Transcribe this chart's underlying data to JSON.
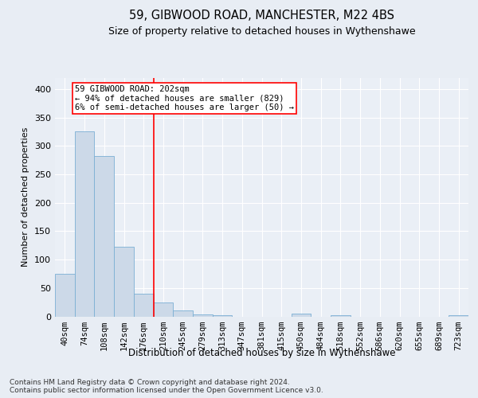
{
  "title1": "59, GIBWOOD ROAD, MANCHESTER, M22 4BS",
  "title2": "Size of property relative to detached houses in Wythenshawe",
  "xlabel": "Distribution of detached houses by size in Wythenshawe",
  "ylabel": "Number of detached properties",
  "footer": "Contains HM Land Registry data © Crown copyright and database right 2024.\nContains public sector information licensed under the Open Government Licence v3.0.",
  "bin_labels": [
    "40sqm",
    "74sqm",
    "108sqm",
    "142sqm",
    "176sqm",
    "210sqm",
    "245sqm",
    "279sqm",
    "313sqm",
    "347sqm",
    "381sqm",
    "415sqm",
    "450sqm",
    "484sqm",
    "518sqm",
    "552sqm",
    "586sqm",
    "620sqm",
    "655sqm",
    "689sqm",
    "723sqm"
  ],
  "bar_values": [
    75,
    325,
    282,
    122,
    40,
    25,
    11,
    4,
    2,
    0,
    0,
    0,
    5,
    0,
    2,
    0,
    0,
    0,
    0,
    0,
    2
  ],
  "bar_color": "#ccd9e8",
  "bar_edge_color": "#7bafd4",
  "vline_x_bin": 5,
  "vline_color": "red",
  "annotation_line1": "59 GIBWOOD ROAD: 202sqm",
  "annotation_line2": "← 94% of detached houses are smaller (829)",
  "annotation_line3": "6% of semi-detached houses are larger (50) →",
  "ylim": [
    0,
    420
  ],
  "yticks": [
    0,
    50,
    100,
    150,
    200,
    250,
    300,
    350,
    400
  ],
  "bg_color": "#e8edf4",
  "plot_bg_color": "#eaeff6",
  "grid_color": "#ffffff",
  "title1_fontsize": 10.5,
  "title2_fontsize": 9,
  "ylabel_fontsize": 8,
  "xlabel_fontsize": 8.5,
  "tick_fontsize": 7.5,
  "footer_fontsize": 6.5
}
